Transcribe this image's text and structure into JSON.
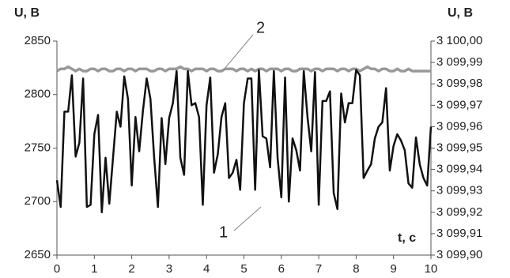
{
  "chart_data": {
    "type": "line",
    "y_label": "U, В",
    "y2_label": "U, В",
    "x_label": "t, с",
    "annotations": [
      "1",
      "2"
    ],
    "x": [
      0,
      0.1,
      0.2,
      0.3,
      0.4,
      0.5,
      0.6,
      0.7,
      0.8,
      0.9,
      1,
      1.1,
      1.2,
      1.3,
      1.4,
      1.5,
      1.6,
      1.7,
      1.8,
      1.9,
      2,
      2.1,
      2.2,
      2.3,
      2.4,
      2.5,
      2.6,
      2.7,
      2.8,
      2.9,
      3,
      3.1,
      3.2,
      3.3,
      3.4,
      3.5,
      3.6,
      3.7,
      3.8,
      3.9,
      4,
      4.1,
      4.2,
      4.3,
      4.4,
      4.5,
      4.6,
      4.7,
      4.8,
      4.9,
      5,
      5.1,
      5.2,
      5.3,
      5.4,
      5.5,
      5.6,
      5.7,
      5.8,
      5.9,
      6,
      6.1,
      6.2,
      6.3,
      6.4,
      6.5,
      6.6,
      6.7,
      6.8,
      6.9,
      7,
      7.1,
      7.2,
      7.3,
      7.4,
      7.5,
      7.6,
      7.7,
      7.8,
      7.9,
      8,
      8.1,
      8.2,
      8.3,
      8.4,
      8.5,
      8.6,
      8.7,
      8.8,
      8.9,
      9,
      9.1,
      9.2,
      9.3,
      9.4,
      9.5,
      9.6,
      9.7,
      9.8,
      9.9,
      10
    ],
    "series": [
      {
        "name": "1",
        "color": "#111111",
        "values": [
          2720,
          2695,
          2784,
          2784,
          2818,
          2742,
          2755,
          2815,
          2695,
          2697,
          2763,
          2781,
          2690,
          2741,
          2698,
          2741,
          2784,
          2770,
          2817,
          2796,
          2715,
          2779,
          2747,
          2785,
          2815,
          2796,
          2741,
          2695,
          2778,
          2735,
          2778,
          2792,
          2822,
          2741,
          2725,
          2822,
          2790,
          2792,
          2779,
          2697,
          2790,
          2816,
          2727,
          2744,
          2779,
          2792,
          2722,
          2727,
          2739,
          2711,
          2792,
          2815,
          2815,
          2711,
          2823,
          2761,
          2759,
          2732,
          2822,
          2741,
          2704,
          2816,
          2700,
          2759,
          2748,
          2729,
          2822,
          2779,
          2747,
          2821,
          2697,
          2794,
          2794,
          2803,
          2708,
          2693,
          2801,
          2774,
          2792,
          2792,
          2823,
          2818,
          2722,
          2729,
          2735,
          2759,
          2770,
          2774,
          2806,
          2729,
          2752,
          2763,
          2757,
          2748,
          2717,
          2713,
          2760,
          2735,
          2722,
          2715,
          2770
        ]
      },
      {
        "name": "2",
        "color": "#999999",
        "axis": "y2",
        "values": [
          3099.986,
          3099.987,
          3099.987,
          3099.988,
          3099.987,
          3099.986,
          3099.987,
          3099.986,
          3099.986,
          3099.987,
          3099.987,
          3099.986,
          3099.987,
          3099.987,
          3099.986,
          3099.986,
          3099.987,
          3099.987,
          3099.986,
          3099.987,
          3099.987,
          3099.986,
          3099.987,
          3099.987,
          3099.987,
          3099.986,
          3099.986,
          3099.987,
          3099.987,
          3099.986,
          3099.987,
          3099.987,
          3099.987,
          3099.988,
          3099.987,
          3099.987,
          3099.986,
          3099.987,
          3099.987,
          3099.987,
          3099.986,
          3099.987,
          3099.987,
          3099.986,
          3099.986,
          3099.987,
          3099.987,
          3099.987,
          3099.986,
          3099.987,
          3099.987,
          3099.986,
          3099.987,
          3099.986,
          3099.987,
          3099.987,
          3099.986,
          3099.987,
          3099.987,
          3099.987,
          3099.986,
          3099.987,
          3099.987,
          3099.986,
          3099.986,
          3099.987,
          3099.987,
          3099.987,
          3099.986,
          3099.987,
          3099.987,
          3099.986,
          3099.987,
          3099.987,
          3099.987,
          3099.986,
          3099.987,
          3099.987,
          3099.986,
          3099.987,
          3099.987,
          3099.986,
          3099.987,
          3099.988,
          3099.987,
          3099.987,
          3099.986,
          3099.987,
          3099.987,
          3099.986,
          3099.986,
          3099.987,
          3099.986,
          3099.986,
          3099.987,
          3099.986,
          3099.986,
          3099.986,
          3099.986,
          3099.986,
          3099.986
        ]
      }
    ],
    "xlim": [
      0,
      10
    ],
    "xticks": [
      0,
      1,
      2,
      3,
      4,
      5,
      6,
      7,
      8,
      9,
      10
    ],
    "ylim": [
      2650,
      2850
    ],
    "yticks": [
      2650,
      2700,
      2750,
      2800,
      2850
    ],
    "y2lim": [
      3099.9,
      3100.0
    ],
    "y2ticks": [
      {
        "value": 3099.9,
        "label": "3 099,90"
      },
      {
        "value": 3099.91,
        "label": "3 099,91"
      },
      {
        "value": 3099.92,
        "label": "3 099,92"
      },
      {
        "value": 3099.93,
        "label": "3 099,93"
      },
      {
        "value": 3099.94,
        "label": "3 099,94"
      },
      {
        "value": 3099.95,
        "label": "3 099,95"
      },
      {
        "value": 3099.96,
        "label": "3 099,96"
      },
      {
        "value": 3099.97,
        "label": "3 099,97"
      },
      {
        "value": 3099.98,
        "label": "3 099,98"
      },
      {
        "value": 3099.99,
        "label": "3 099,99"
      },
      {
        "value": 3100.0,
        "label": "3 100,00"
      }
    ],
    "grid": false
  }
}
